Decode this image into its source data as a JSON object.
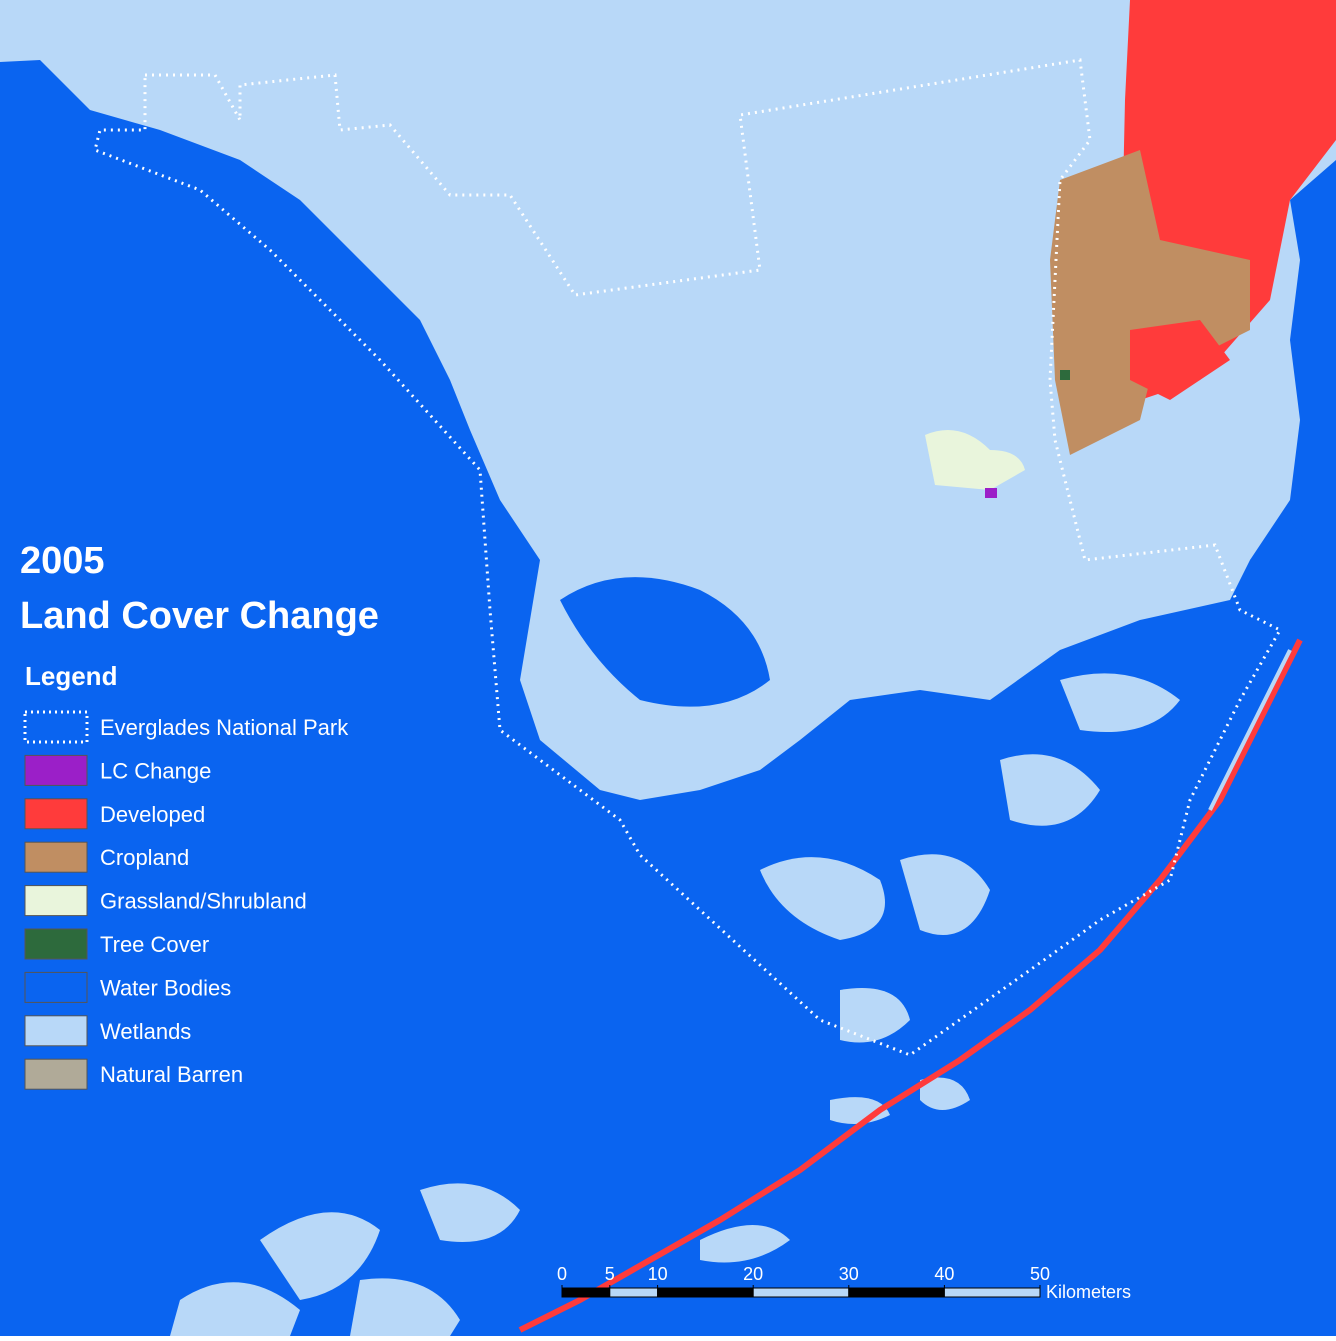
{
  "title": {
    "year": "2005",
    "subtitle": "Land Cover Change"
  },
  "legend": {
    "heading": "Legend",
    "items": [
      {
        "name": "Everglades National Park",
        "color": "#ffffff",
        "style": "dotted"
      },
      {
        "name": "LC Change",
        "color": "#9b1fc8"
      },
      {
        "name": "Developed",
        "color": "#ff3b3b"
      },
      {
        "name": "Cropland",
        "color": "#c08e62"
      },
      {
        "name": "Grassland/Shrubland",
        "color": "#e9f5dc"
      },
      {
        "name": "Tree Cover",
        "color": "#2d6a3c"
      },
      {
        "name": "Water Bodies",
        "color": "#0a64f0"
      },
      {
        "name": "Wetlands",
        "color": "#b8d8f8"
      },
      {
        "name": "Natural Barren",
        "color": "#b0aa98"
      }
    ]
  },
  "scale_bar": {
    "ticks": [
      0,
      5,
      10,
      20,
      30,
      40,
      50
    ],
    "unit": "Kilometers"
  }
}
